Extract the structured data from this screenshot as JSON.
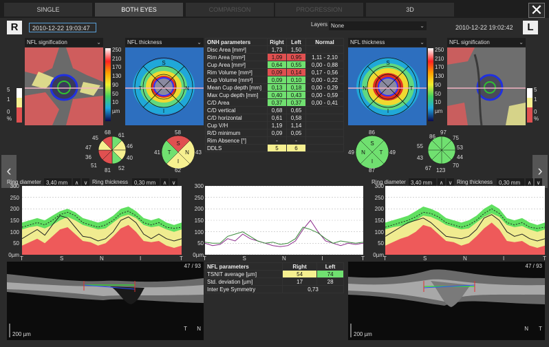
{
  "tabs": {
    "single": "SINGLE",
    "both_eyes": "BOTH EYES",
    "comparison": "COMPARISON",
    "progression": "PROGRESSION",
    "three_d": "3D"
  },
  "close_glyph": "✕",
  "left_eye": {
    "letter": "R",
    "date": "2010-12-22 19:03:47"
  },
  "right_eye": {
    "letter": "L",
    "date": "2010-12-22 19:02:42"
  },
  "layers": {
    "label": "Layers",
    "value": "None"
  },
  "dropdowns": {
    "nfl_signification": "NFL signification",
    "nfl_thickness": "NFL thickness"
  },
  "scale_thickness": {
    "ticks": [
      "250",
      "210",
      "170",
      "130",
      "90",
      "50",
      "10"
    ],
    "unit": "µm"
  },
  "scale_signif": {
    "ticks": [
      "5",
      "1",
      "0"
    ],
    "unit": "%"
  },
  "sector_labels": {
    "S": "S",
    "N": "N",
    "I": "I",
    "T": "T"
  },
  "sectors_right": {
    "ring_values": [
      "68",
      "61",
      "46",
      "40",
      "52",
      "81",
      "51",
      "36",
      "47",
      "45"
    ],
    "summary": [
      "58",
      "43",
      "62",
      "41"
    ]
  },
  "sectors_left": {
    "ring_values": [
      "86",
      "97",
      "75",
      "53",
      "44",
      "70",
      "123",
      "67",
      "43",
      "55"
    ],
    "summary": [
      "86",
      "49",
      "87",
      "49"
    ]
  },
  "onh": {
    "headers": [
      "ONH parameters",
      "Right",
      "Left",
      "Normal"
    ],
    "rows": [
      [
        "Disc Area [mm²]",
        "1,73",
        "1,50",
        ""
      ],
      [
        "Rim Area [mm²]",
        "1,09",
        "0,95",
        "1,11 - 2,10"
      ],
      [
        "Cup Area [mm²]",
        "0,64",
        "0,55",
        "0,00 - 0,88"
      ],
      [
        "Rim Volume [mm³]",
        "0,09",
        "0,14",
        "0,17 - 0,56"
      ],
      [
        "Cup Volume [mm³]",
        "0,09",
        "0,10",
        "0,00 - 0,22"
      ],
      [
        "Mean Cup depth [mm]",
        "0,13",
        "0,18",
        "0,00 - 0,29"
      ],
      [
        "Max Cup depth [mm]",
        "0,40",
        "0,43",
        "0,00 - 0,59"
      ],
      [
        "C/D Area",
        "0,37",
        "0,37",
        "0,00 - 0,41"
      ],
      [
        "C/D vertical",
        "0,68",
        "0,65",
        ""
      ],
      [
        "C/D horizontal",
        "0,61",
        "0,58",
        ""
      ],
      [
        "Cup V/H",
        "1,19",
        "1,14",
        ""
      ],
      [
        "R/D minimum",
        "0,09",
        "0,05",
        ""
      ],
      [
        "Rim Absence [°]",
        "-",
        "-",
        ""
      ],
      [
        "DDLS",
        "5",
        "6",
        ""
      ]
    ]
  },
  "ring_controls": {
    "diameter_label": "Ring diameter",
    "diameter_value": "3,40 mm",
    "thickness_label": "Ring thickness",
    "thickness_value": "0,30 mm",
    "up": "∧",
    "down": "∨"
  },
  "chart_data": [
    {
      "type": "area",
      "title": "",
      "ylim": [
        0,
        300
      ],
      "yticks": [
        "300",
        "250",
        "200",
        "150",
        "100",
        "50",
        "0µm"
      ],
      "xticks": [
        "T",
        "S",
        "N",
        "I",
        "T"
      ]
    },
    {
      "type": "line",
      "title": "",
      "ylim": [
        0,
        300
      ],
      "yticks": [
        "300",
        "250",
        "200",
        "150",
        "100",
        "50",
        "0µm"
      ],
      "xticks": [
        "T",
        "S",
        "N",
        "I",
        "T"
      ],
      "series": [
        {
          "color": "#8a2a8a"
        },
        {
          "color": "#3a8a3a"
        }
      ]
    },
    {
      "type": "area",
      "title": "",
      "ylim": [
        0,
        300
      ],
      "yticks": [
        "300",
        "250",
        "200",
        "150",
        "100",
        "50",
        "0µm"
      ],
      "xticks": [
        "T",
        "S",
        "N",
        "I",
        "T"
      ]
    }
  ],
  "nfl": {
    "headers": [
      "NFL parameters",
      "Right",
      "Left"
    ],
    "rows": [
      [
        "TSNIT average [µm]",
        "54",
        "74"
      ],
      [
        "Std. deviation [µm]",
        "17",
        "28"
      ],
      [
        "Inter Eye Symmetry",
        "0,73",
        ""
      ]
    ]
  },
  "oct_right": {
    "frame": "47 / 93",
    "scale": "200 µm",
    "orient_a": "T",
    "orient_b": "N"
  },
  "oct_left": {
    "frame": "47 / 93",
    "scale": "200 µm",
    "orient_a": "N",
    "orient_b": "T"
  },
  "nav": {
    "prev": "‹",
    "next": "›"
  }
}
